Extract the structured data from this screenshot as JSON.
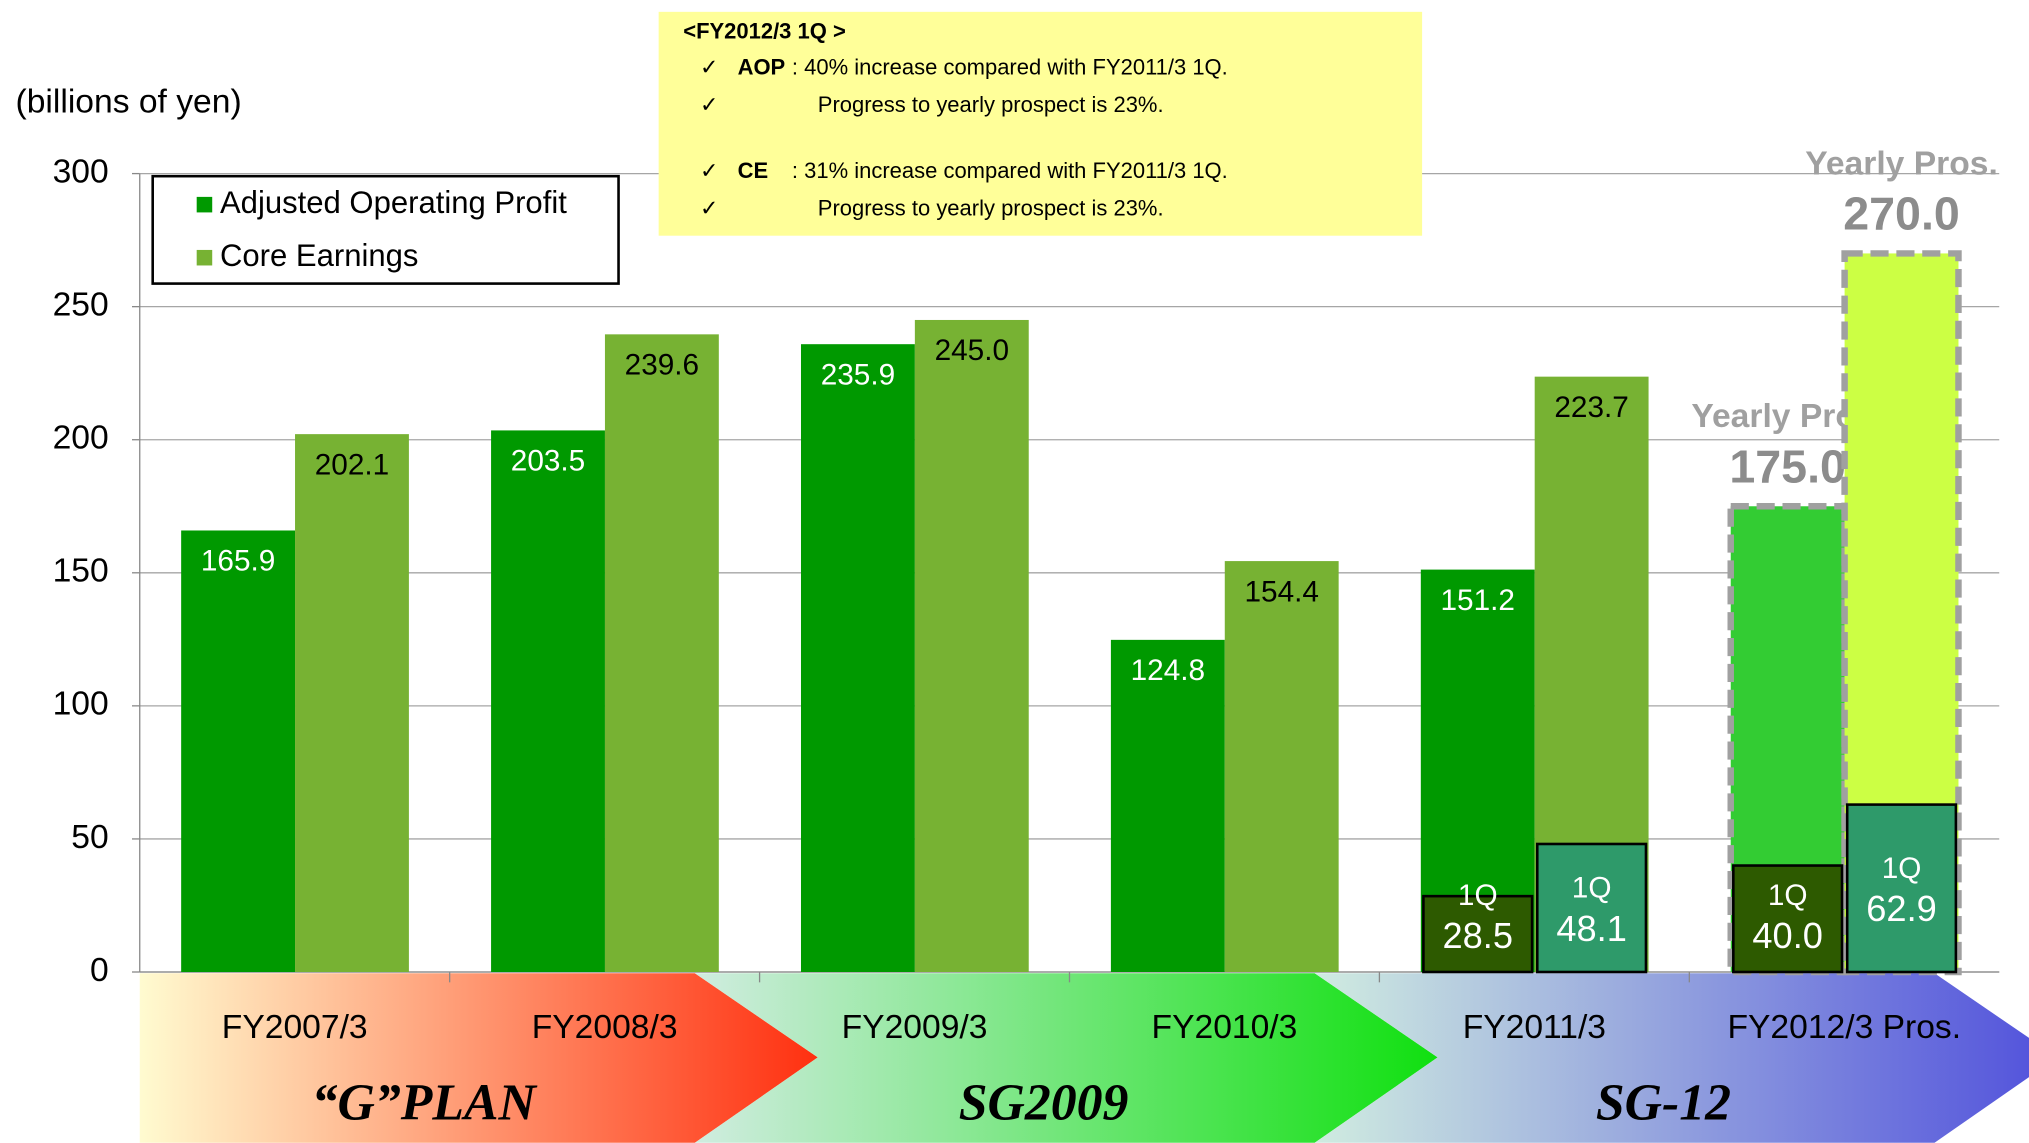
{
  "chart_data": {
    "type": "bar",
    "y_label": "(billions of yen)",
    "categories": [
      "FY2007/3",
      "FY2008/3",
      "FY2009/3",
      "FY2010/3",
      "FY2011/3",
      "FY2012/3 Pros."
    ],
    "series": [
      {
        "name": "Adjusted Operating Profit",
        "color": "#009900",
        "colors": [
          "#009900",
          "#009900",
          "#009900",
          "#009900",
          "#009900",
          "#33cc33"
        ],
        "dashed": [
          false,
          false,
          false,
          false,
          false,
          true
        ],
        "values": [
          165.9,
          203.5,
          235.9,
          124.8,
          151.2,
          175.0
        ],
        "value_labels": [
          "165.9",
          "203.5",
          "235.9",
          "124.8",
          "151.2",
          "175.0"
        ]
      },
      {
        "name": "Core Earnings",
        "color": "#77b233",
        "colors": [
          "#77b233",
          "#77b233",
          "#77b233",
          "#77b233",
          "#77b233",
          "#ccff44"
        ],
        "dashed": [
          false,
          false,
          false,
          false,
          false,
          true
        ],
        "values": [
          202.1,
          239.6,
          245.0,
          154.4,
          223.7,
          270.0
        ],
        "value_labels": [
          "202.1",
          "239.6",
          "245.0",
          "154.4",
          "223.7",
          "270.0"
        ]
      }
    ],
    "quarter_label": "1Q",
    "quarter_series": [
      {
        "color": "#2d5a00",
        "values": [
          null,
          null,
          null,
          null,
          28.5,
          40.0
        ],
        "value_labels": [
          null,
          null,
          null,
          null,
          "28.5",
          "40.0"
        ]
      },
      {
        "color": "#2e9a6a",
        "values": [
          null,
          null,
          null,
          null,
          48.1,
          62.9
        ],
        "value_labels": [
          null,
          null,
          null,
          null,
          "48.1",
          "62.9"
        ]
      }
    ],
    "projection_label": "Yearly Pros.",
    "ylim": [
      0,
      300
    ],
    "yticks": [
      0,
      50,
      100,
      150,
      200,
      250,
      300
    ],
    "grid": true,
    "legend": "upper left",
    "phases": [
      "“G”PLAN",
      "SG2009",
      "SG-12"
    ],
    "note": {
      "title": "<FY2012/3 1Q >",
      "items": [
        {
          "key": "AOP",
          "text": ": 40% increase compared with FY2011/3 1Q."
        },
        {
          "text": "Progress to yearly prospect is 23%."
        },
        {
          "key": "CE",
          "text": ": 31% increase compared with FY2011/3 1Q."
        },
        {
          "text": "Progress to yearly prospect is 23%."
        }
      ]
    }
  }
}
